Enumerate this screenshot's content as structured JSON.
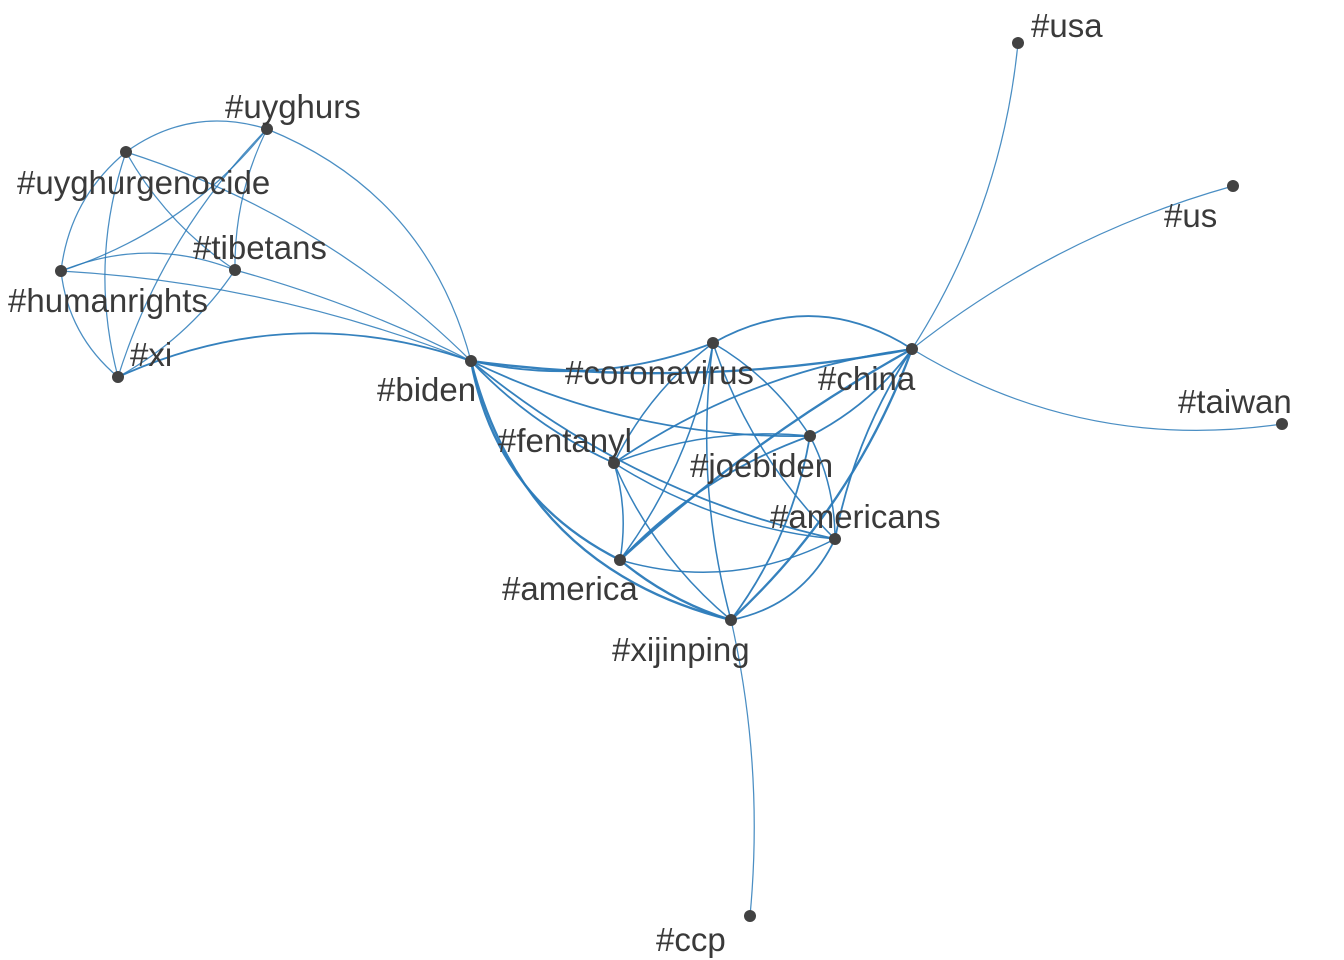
{
  "diagram": {
    "type": "network-graph",
    "node_color": "#424242",
    "edge_color": "#2a7ab9",
    "label_color": "#3a3a3a",
    "nodes": [
      {
        "id": "uyghurs",
        "label": "#uyghurs"
      },
      {
        "id": "uyghurgenocide",
        "label": "#uyghurgenocide"
      },
      {
        "id": "tibetans",
        "label": "#tibetans"
      },
      {
        "id": "humanrights",
        "label": "#humanrights"
      },
      {
        "id": "xi",
        "label": "#xi"
      },
      {
        "id": "biden",
        "label": "#biden"
      },
      {
        "id": "coronavirus",
        "label": "#coronavirus"
      },
      {
        "id": "china",
        "label": "#china"
      },
      {
        "id": "usa",
        "label": "#usa"
      },
      {
        "id": "us",
        "label": "#us"
      },
      {
        "id": "taiwan",
        "label": "#taiwan"
      },
      {
        "id": "fentanyl",
        "label": "#fentanyl"
      },
      {
        "id": "joebiden",
        "label": "#joebiden"
      },
      {
        "id": "americans",
        "label": "#americans"
      },
      {
        "id": "america",
        "label": "#america"
      },
      {
        "id": "xijinping",
        "label": "#xijinping"
      },
      {
        "id": "ccp",
        "label": "#ccp"
      }
    ],
    "edges": [
      {
        "source": "uyghurgenocide",
        "target": "uyghurs",
        "weight": 1
      },
      {
        "source": "uyghurgenocide",
        "target": "tibetans",
        "weight": 1
      },
      {
        "source": "uyghurgenocide",
        "target": "humanrights",
        "weight": 1
      },
      {
        "source": "uyghurgenocide",
        "target": "xi",
        "weight": 1
      },
      {
        "source": "uyghurgenocide",
        "target": "biden",
        "weight": 1
      },
      {
        "source": "uyghurs",
        "target": "tibetans",
        "weight": 1
      },
      {
        "source": "uyghurs",
        "target": "humanrights",
        "weight": 1
      },
      {
        "source": "uyghurs",
        "target": "xi",
        "weight": 1
      },
      {
        "source": "uyghurs",
        "target": "biden",
        "weight": 1
      },
      {
        "source": "humanrights",
        "target": "tibetans",
        "weight": 1
      },
      {
        "source": "humanrights",
        "target": "xi",
        "weight": 1
      },
      {
        "source": "humanrights",
        "target": "biden",
        "weight": 1
      },
      {
        "source": "tibetans",
        "target": "xi",
        "weight": 1
      },
      {
        "source": "tibetans",
        "target": "biden",
        "weight": 1
      },
      {
        "source": "xi",
        "target": "biden",
        "weight": 2
      },
      {
        "source": "biden",
        "target": "coronavirus",
        "weight": 2
      },
      {
        "source": "biden",
        "target": "china",
        "weight": 3
      },
      {
        "source": "biden",
        "target": "fentanyl",
        "weight": 2
      },
      {
        "source": "biden",
        "target": "joebiden",
        "weight": 2
      },
      {
        "source": "biden",
        "target": "americans",
        "weight": 2
      },
      {
        "source": "biden",
        "target": "america",
        "weight": 3
      },
      {
        "source": "biden",
        "target": "xijinping",
        "weight": 3
      },
      {
        "source": "coronavirus",
        "target": "china",
        "weight": 2
      },
      {
        "source": "coronavirus",
        "target": "fentanyl",
        "weight": 1.5
      },
      {
        "source": "coronavirus",
        "target": "joebiden",
        "weight": 1.5
      },
      {
        "source": "coronavirus",
        "target": "americans",
        "weight": 1.5
      },
      {
        "source": "coronavirus",
        "target": "america",
        "weight": 1.5
      },
      {
        "source": "coronavirus",
        "target": "xijinping",
        "weight": 1.5
      },
      {
        "source": "china",
        "target": "usa",
        "weight": 1
      },
      {
        "source": "china",
        "target": "us",
        "weight": 1
      },
      {
        "source": "china",
        "target": "taiwan",
        "weight": 1
      },
      {
        "source": "china",
        "target": "fentanyl",
        "weight": 2
      },
      {
        "source": "china",
        "target": "joebiden",
        "weight": 2
      },
      {
        "source": "china",
        "target": "americans",
        "weight": 2
      },
      {
        "source": "china",
        "target": "america",
        "weight": 3
      },
      {
        "source": "china",
        "target": "xijinping",
        "weight": 3
      },
      {
        "source": "fentanyl",
        "target": "joebiden",
        "weight": 1.5
      },
      {
        "source": "fentanyl",
        "target": "americans",
        "weight": 1.5
      },
      {
        "source": "fentanyl",
        "target": "america",
        "weight": 1.5
      },
      {
        "source": "fentanyl",
        "target": "xijinping",
        "weight": 1.5
      },
      {
        "source": "joebiden",
        "target": "americans",
        "weight": 1.5
      },
      {
        "source": "joebiden",
        "target": "america",
        "weight": 2
      },
      {
        "source": "joebiden",
        "target": "xijinping",
        "weight": 2
      },
      {
        "source": "americans",
        "target": "america",
        "weight": 1.5
      },
      {
        "source": "americans",
        "target": "xijinping",
        "weight": 2
      },
      {
        "source": "america",
        "target": "xijinping",
        "weight": 3
      },
      {
        "source": "xijinping",
        "target": "ccp",
        "weight": 1
      }
    ]
  }
}
